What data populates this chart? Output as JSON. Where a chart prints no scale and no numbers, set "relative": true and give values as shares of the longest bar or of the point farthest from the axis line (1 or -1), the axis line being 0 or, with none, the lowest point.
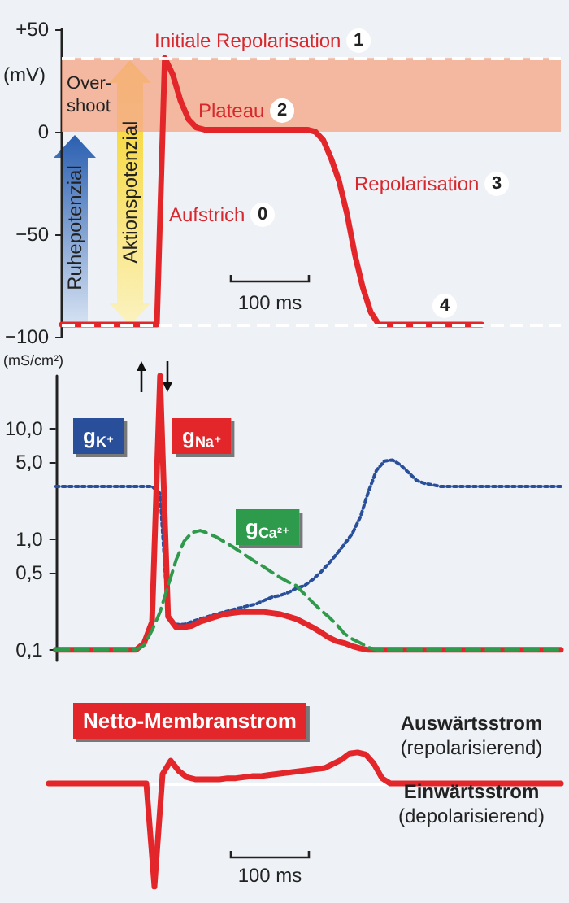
{
  "chart_data": [
    {
      "type": "line",
      "ylabel": "(mV)",
      "tick_labels": "y",
      "categories": [
        null,
        null,
        null,
        null,
        null,
        null,
        null,
        null,
        null,
        null,
        null,
        null,
        null,
        null,
        null,
        null,
        null,
        null,
        null,
        null,
        null,
        null,
        null,
        null,
        null,
        null,
        null,
        null,
        null,
        null,
        null,
        null,
        null,
        null,
        null,
        null,
        null,
        null,
        null,
        null,
        null,
        null,
        null,
        null,
        null,
        null,
        null,
        null,
        null,
        null,
        null,
        null,
        null,
        null,
        null,
        null,
        null,
        null,
        null,
        null,
        null,
        null,
        null,
        null
      ],
      "ylim": [
        -100,
        50
      ],
      "yticks": [
        {
          "value": -100,
          "label": "−100"
        },
        {
          "value": -50,
          "label": "−50"
        },
        0,
        {
          "value": 50,
          "label": "+50"
        }
      ],
      "series": [
        {
          "color": "#e3262a",
          "values": [
            -94,
            -94,
            -94,
            -94,
            -94,
            -94,
            -94,
            -94,
            -94,
            -94,
            -94,
            -94,
            -94,
            36,
            28,
            15,
            6,
            2,
            1,
            1,
            1,
            1,
            1,
            1,
            1,
            1,
            1,
            1,
            1,
            1,
            1,
            1,
            0,
            -4,
            -13,
            -24,
            -40,
            -60,
            -76,
            -88,
            -94,
            -94,
            -94,
            -94,
            -94,
            -94,
            -94,
            -94,
            -94,
            -94,
            -94,
            -94,
            -94,
            -94,
            null,
            null,
            null,
            null,
            null,
            null,
            null,
            null,
            null,
            null
          ]
        }
      ],
      "bands": [
        {
          "axis": "y",
          "from": 0,
          "to": 36,
          "label": "Over-\nshoot",
          "color": "#f4ab8c"
        }
      ],
      "ref_lines": [
        {
          "axis": "y",
          "value": 36,
          "color": "#ffffff",
          "line_style": "dashed"
        },
        {
          "axis": "y",
          "value": -94,
          "color": "#ffffff",
          "line_style": "dashed"
        }
      ],
      "annotations": [
        "Initiale Repolarisation 1",
        "Plateau 2",
        "Aufstrich 0",
        "Repolarisation 3",
        "4",
        "100 ms",
        "Ruhepotenzial",
        "Aktionspotenzial"
      ]
    },
    {
      "type": "line",
      "ylabel": "(mS/cm²)",
      "tick_labels": "y",
      "log": true,
      "categories": [
        null,
        null,
        null,
        null,
        null,
        null,
        null,
        null,
        null,
        null,
        null,
        null,
        null,
        null,
        null,
        null,
        null,
        null,
        null,
        null,
        null,
        null,
        null,
        null,
        null,
        null,
        null,
        null,
        null,
        null,
        null,
        null,
        null,
        null,
        null,
        null,
        null,
        null,
        null,
        null,
        null,
        null,
        null,
        null,
        null,
        null,
        null,
        null,
        null,
        null,
        null,
        null,
        null,
        null,
        null,
        null,
        null,
        null,
        null,
        null,
        null,
        null,
        null,
        null
      ],
      "ylim": [
        0.08,
        30
      ],
      "yticks": [
        {
          "value": 0.1,
          "label": "0,1"
        },
        {
          "value": 0.5,
          "label": "0,5"
        },
        {
          "value": 1,
          "label": "1,0"
        },
        {
          "value": 5,
          "label": "5,0"
        },
        {
          "value": 10,
          "label": "10,0"
        }
      ],
      "series": [
        {
          "name": "g$_{K⁺}$",
          "color": "#2a4f9a",
          "line_style": "dotted",
          "values": [
            3,
            3,
            3,
            3,
            3,
            3,
            3,
            3,
            3,
            3,
            3,
            3,
            3,
            2.6,
            0.2,
            0.17,
            0.17,
            0.18,
            0.19,
            0.2,
            0.21,
            0.22,
            0.23,
            0.24,
            0.25,
            0.26,
            0.28,
            0.3,
            0.31,
            0.33,
            0.36,
            0.38,
            0.43,
            0.5,
            0.6,
            0.73,
            0.9,
            1.13,
            1.6,
            2.7,
            4.2,
            5.1,
            5.2,
            4.7,
            4,
            3.4,
            3.2,
            3.1,
            3,
            3,
            3,
            3,
            3,
            3,
            3,
            3,
            3,
            3,
            3,
            3,
            3,
            3,
            3,
            3
          ]
        },
        {
          "name": "g$_{Na⁺}$",
          "color": "#e3262a",
          "line_style": "solid",
          "values": [
            0.1,
            0.1,
            0.1,
            0.1,
            0.1,
            0.1,
            0.1,
            0.1,
            0.1,
            0.1,
            0.1,
            0.115,
            0.18,
            30,
            0.2,
            0.16,
            0.16,
            0.165,
            0.18,
            0.19,
            0.2,
            0.21,
            0.215,
            0.22,
            0.22,
            0.22,
            0.22,
            0.215,
            0.21,
            0.2,
            0.19,
            0.175,
            0.16,
            0.145,
            0.13,
            0.12,
            0.115,
            0.108,
            0.103,
            0.1,
            0.1,
            0.1,
            0.1,
            0.1,
            0.1,
            0.1,
            0.1,
            0.1,
            0.1,
            0.1,
            0.1,
            0.1,
            0.1,
            0.1,
            0.1,
            0.1,
            0.1,
            0.1,
            0.1,
            0.1,
            0.1,
            0.1,
            0.1,
            0.1
          ]
        },
        {
          "name": "g$_{Ca²⁺}$",
          "color": "#2f9a4b",
          "line_style": "dashed",
          "values": [
            0.1,
            0.1,
            0.1,
            0.1,
            0.1,
            0.1,
            0.1,
            0.1,
            0.1,
            0.1,
            0.1,
            0.11,
            0.15,
            0.22,
            0.38,
            0.65,
            0.96,
            1.15,
            1.2,
            1.13,
            1.05,
            0.95,
            0.86,
            0.77,
            0.69,
            0.62,
            0.56,
            0.5,
            0.45,
            0.41,
            0.38,
            0.32,
            0.27,
            0.23,
            0.2,
            0.17,
            0.14,
            0.125,
            0.115,
            0.105,
            0.1,
            0.1,
            0.1,
            0.1,
            0.1,
            0.1,
            0.1,
            0.1,
            0.1,
            0.1,
            0.1,
            0.1,
            0.1,
            0.1,
            0.1,
            0.1,
            0.1,
            0.1,
            0.1,
            0.1,
            0.1,
            0.1,
            0.1,
            0.1
          ]
        }
      ]
    },
    {
      "type": "line",
      "relative": true,
      "tick_labels": false,
      "categories": [
        null,
        null,
        null,
        null,
        null,
        null,
        null,
        null,
        null,
        null,
        null,
        null,
        null,
        null,
        null,
        null,
        null,
        null,
        null,
        null,
        null,
        null,
        null,
        null,
        null,
        null,
        null,
        null,
        null,
        null,
        null,
        null,
        null,
        null,
        null,
        null,
        null,
        null,
        null,
        null,
        null,
        null,
        null,
        null,
        null,
        null,
        null,
        null,
        null,
        null,
        null,
        null,
        null,
        null,
        null,
        null,
        null,
        null,
        null,
        null,
        null,
        null,
        null,
        null
      ],
      "series": [
        {
          "name": "Netto-Membranstrom",
          "color": "#e3262a",
          "values": [
            0,
            0,
            0,
            0,
            0,
            0,
            0,
            0,
            0,
            0,
            0,
            0,
            0,
            -1,
            0.09,
            0.22,
            0.12,
            0.06,
            0.04,
            0.04,
            0.04,
            0.04,
            0.05,
            0.05,
            0.06,
            0.07,
            0.07,
            0.08,
            0.09,
            0.1,
            0.11,
            0.12,
            0.13,
            0.14,
            0.15,
            0.19,
            0.23,
            0.29,
            0.3,
            0.28,
            0.19,
            0.05,
            0,
            0,
            0,
            0,
            0,
            0,
            0,
            0,
            0,
            0,
            0,
            0,
            0,
            0,
            0,
            0,
            0,
            0,
            0,
            0,
            0,
            0
          ]
        }
      ],
      "annotations": [
        "Auswärtsstrom\n(repolarisierend)",
        "Einwärtsstrom\n(depolarisierend)",
        "100 ms"
      ]
    }
  ]
}
